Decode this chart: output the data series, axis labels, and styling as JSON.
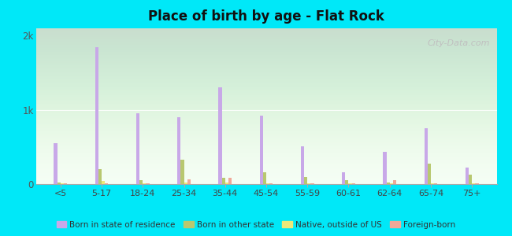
{
  "title": "Place of birth by age - Flat Rock",
  "categories": [
    "<5",
    "5-17",
    "18-24",
    "25-34",
    "35-44",
    "45-54",
    "55-59",
    "60-61",
    "62-64",
    "65-74",
    "75+"
  ],
  "series": {
    "born_in_state": [
      550,
      1850,
      950,
      900,
      1300,
      920,
      510,
      160,
      430,
      750,
      220
    ],
    "born_other_state": [
      20,
      200,
      55,
      330,
      80,
      160,
      100,
      50,
      20,
      280,
      130
    ],
    "native_outside_us": [
      10,
      45,
      15,
      18,
      25,
      10,
      8,
      8,
      8,
      8,
      8
    ],
    "foreign_born": [
      12,
      12,
      12,
      65,
      85,
      12,
      12,
      12,
      55,
      8,
      8
    ]
  },
  "colors": {
    "born_in_state": "#c8a8e8",
    "born_other_state": "#b8c870",
    "native_outside_us": "#ede87a",
    "foreign_born": "#f0a898"
  },
  "legend_labels": [
    "Born in state of residence",
    "Born in other state",
    "Native, outside of US",
    "Foreign-born"
  ],
  "ylim": [
    0,
    2100
  ],
  "yticks": [
    0,
    1000,
    2000
  ],
  "ytick_labels": [
    "0",
    "1k",
    "2k"
  ],
  "outer_background": "#00e8f8",
  "plot_bg_top": "#e0f0e0",
  "plot_bg_bottom": "#f5fff5",
  "bar_width": 0.08,
  "watermark": "City-Data.com"
}
